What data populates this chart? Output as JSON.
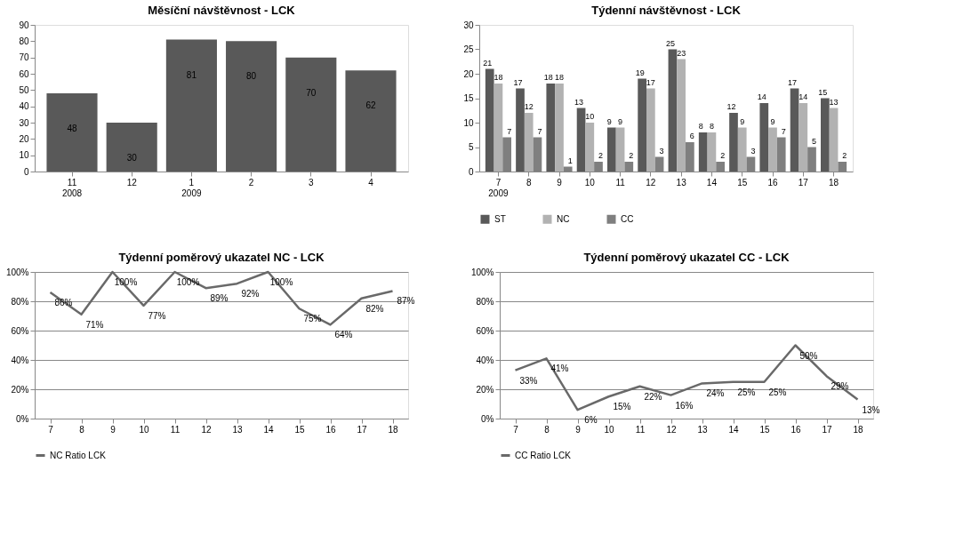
{
  "chart_data": [
    {
      "type": "bar",
      "title": "Měsíční návštěvnost - LCK",
      "categories": [
        "11\n2008",
        "12",
        "1\n2009",
        "2",
        "3",
        "4"
      ],
      "values": [
        48,
        30,
        81,
        80,
        70,
        62
      ],
      "color": "#595959",
      "ylim": [
        0,
        90
      ],
      "yticks": [
        0,
        10,
        20,
        30,
        40,
        50,
        60,
        70,
        80,
        90
      ],
      "grid": false,
      "data_labels": true,
      "legend": false
    },
    {
      "type": "bar",
      "title": "Týdenní návštěvnost - LCK",
      "categories": [
        "7\n2009",
        "8",
        "9",
        "10",
        "11",
        "12",
        "13",
        "14",
        "15",
        "16",
        "17",
        "18"
      ],
      "series": [
        {
          "name": "ST",
          "color": "#595959",
          "values": [
            21,
            17,
            18,
            13,
            9,
            19,
            25,
            8,
            12,
            14,
            17,
            15
          ]
        },
        {
          "name": "NC",
          "color": "#b2b2b2",
          "values": [
            18,
            12,
            18,
            10,
            9,
            17,
            23,
            8,
            9,
            9,
            14,
            13
          ]
        },
        {
          "name": "CC",
          "color": "#7f7f7f",
          "values": [
            7,
            7,
            1,
            2,
            2,
            3,
            6,
            2,
            3,
            7,
            5,
            2
          ]
        }
      ],
      "ylim": [
        0,
        30
      ],
      "yticks": [
        0,
        5,
        10,
        15,
        20,
        25,
        30
      ],
      "grid": false,
      "data_labels": true,
      "legend": "bottom"
    },
    {
      "type": "line",
      "title": "Týdenní poměrový ukazatel NC - LCK",
      "categories": [
        "7",
        "8",
        "9",
        "10",
        "11",
        "12",
        "13",
        "14",
        "15",
        "16",
        "17",
        "18"
      ],
      "series": [
        {
          "name": "NC Ratio LCK",
          "color": "#696969",
          "values": [
            86,
            71,
            100,
            77,
            100,
            89,
            92,
            100,
            75,
            64,
            82,
            87
          ],
          "value_labels": [
            "86%",
            "71%",
            "100%",
            "77%",
            "100%",
            "89%",
            "92%",
            "100%",
            "75%",
            "64%",
            "82%",
            "87%"
          ]
        }
      ],
      "ylim": [
        0,
        100
      ],
      "yticks": [
        {
          "value": 0,
          "label": "0%"
        },
        {
          "value": 20,
          "label": "20%"
        },
        {
          "value": 40,
          "label": "40%"
        },
        {
          "value": 60,
          "label": "60%"
        },
        {
          "value": 80,
          "label": "80%"
        },
        {
          "value": 100,
          "label": "100%"
        }
      ],
      "grid": "y",
      "legend": "bottom",
      "line_style": "solid"
    },
    {
      "type": "line",
      "title": "Týdenní poměrový ukazatel CC - LCK",
      "categories": [
        "7",
        "8",
        "9",
        "10",
        "11",
        "12",
        "13",
        "14",
        "15",
        "16",
        "17",
        "18"
      ],
      "series": [
        {
          "name": "CC Ratio LCK",
          "color": "#696969",
          "values": [
            33,
            41,
            6,
            15,
            22,
            16,
            24,
            25,
            25,
            50,
            29,
            13
          ],
          "value_labels": [
            "33%",
            "41%",
            "6%",
            "15%",
            "22%",
            "16%",
            "24%",
            "25%",
            "25%",
            "50%",
            "29%",
            "13%"
          ]
        }
      ],
      "ylim": [
        0,
        100
      ],
      "yticks": [
        {
          "value": 0,
          "label": "0%"
        },
        {
          "value": 20,
          "label": "20%"
        },
        {
          "value": 40,
          "label": "40%"
        },
        {
          "value": 60,
          "label": "60%"
        },
        {
          "value": 80,
          "label": "80%"
        },
        {
          "value": 100,
          "label": "100%"
        }
      ],
      "grid": "y",
      "legend": "bottom",
      "line_style": "solid"
    }
  ]
}
